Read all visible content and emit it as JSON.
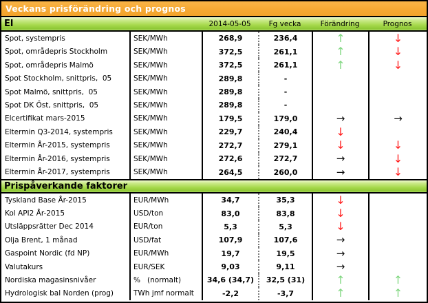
{
  "title": "Veckans prisförändring och prognos",
  "columns": {
    "date": "2014-05-05",
    "prev": "Fg vecka",
    "change": "Förändring",
    "forecast": "Prognos"
  },
  "arrow_glyphs": {
    "up": "↑",
    "down": "↓",
    "right": "→"
  },
  "colors": {
    "title_bg": "#f6a832",
    "band_green": "#a6d94c",
    "arrow_up": "#7fd67f",
    "arrow_down": "#ff1b1b",
    "arrow_right": "#111111"
  },
  "sections": [
    {
      "name": "El",
      "rows": [
        {
          "label": "Spot, systempris",
          "unit": "SEK/MWh",
          "value": "268,9",
          "prev": "236,4",
          "change": "up",
          "forecast": "down"
        },
        {
          "label": "Spot, områdepris Stockholm",
          "unit": "SEK/MWh",
          "value": "372,5",
          "prev": "261,1",
          "change": "up",
          "forecast": "down"
        },
        {
          "label": "Spot, områdepris Malmö",
          "unit": "SEK/MWh",
          "value": "372,5",
          "prev": "261,1",
          "change": "up",
          "forecast": "down"
        },
        {
          "label": "Spot Stockholm, snittpris,  05",
          "unit": "SEK/MWh",
          "value": "289,8",
          "prev": "-",
          "change": "",
          "forecast": ""
        },
        {
          "label": "Spot Malmö, snittpris,  05",
          "unit": "SEK/MWh",
          "value": "289,8",
          "prev": "-",
          "change": "",
          "forecast": ""
        },
        {
          "label": "Spot DK Öst, snittpris,  05",
          "unit": "SEK/MWh",
          "value": "289,8",
          "prev": "-",
          "change": "",
          "forecast": ""
        },
        {
          "label": "Elcertifikat mars-2015",
          "unit": "SEK/MWh",
          "value": "179,5",
          "prev": "179,0",
          "change": "right",
          "forecast": "right"
        },
        {
          "label": "Eltermin Q3-2014, systempris",
          "unit": "SEK/MWh",
          "value": "229,7",
          "prev": "240,4",
          "change": "down",
          "forecast": ""
        },
        {
          "label": "Eltermin År-2015, systempris",
          "unit": "SEK/MWh",
          "value": "272,7",
          "prev": "279,1",
          "change": "down",
          "forecast": "down"
        },
        {
          "label": "Eltermin År-2016, systempris",
          "unit": "SEK/MWh",
          "value": "272,6",
          "prev": "272,7",
          "change": "right",
          "forecast": "down"
        },
        {
          "label": "Eltermin År-2017, systempris",
          "unit": "SEK/MWh",
          "value": "264,5",
          "prev": "260,0",
          "change": "right",
          "forecast": "down"
        }
      ]
    },
    {
      "name": "Prispåverkande faktorer",
      "rows": [
        {
          "label": "Tyskland Base År-2015",
          "unit": "EUR/MWh",
          "value": "34,7",
          "prev": "35,3",
          "change": "down",
          "forecast": ""
        },
        {
          "label": "Kol API2 År-2015",
          "unit": "USD/ton",
          "value": "83,0",
          "prev": "83,8",
          "change": "down",
          "forecast": ""
        },
        {
          "label": "Utsläppsrätter Dec 2014",
          "unit": "EUR/ton",
          "value": "5,3",
          "prev": "5,3",
          "change": "down",
          "forecast": ""
        },
        {
          "label": "Olja Brent, 1 månad",
          "unit": "USD/fat",
          "value": "107,9",
          "prev": "107,6",
          "change": "right",
          "forecast": ""
        },
        {
          "label": "Gaspoint Nordic (fd NP)",
          "unit": "EUR/MWh",
          "value": "19,7",
          "prev": "19,5",
          "change": "right",
          "forecast": ""
        },
        {
          "label": "Valutakurs",
          "unit": "EUR/SEK",
          "value": "9,03",
          "prev": "9,11",
          "change": "right",
          "forecast": ""
        },
        {
          "label": "Nordiska magasinsnivåer",
          "unit": "%   (normalt)",
          "value": "34,6 (34,7)",
          "prev": "32,5 (31)",
          "change": "up",
          "forecast": "up"
        },
        {
          "label": "Hydrologisk bal Norden (prog)",
          "unit": "TWh jmf normalt",
          "value": "-2,2",
          "prev": "-3,7",
          "change": "up",
          "forecast": "up"
        }
      ]
    }
  ]
}
